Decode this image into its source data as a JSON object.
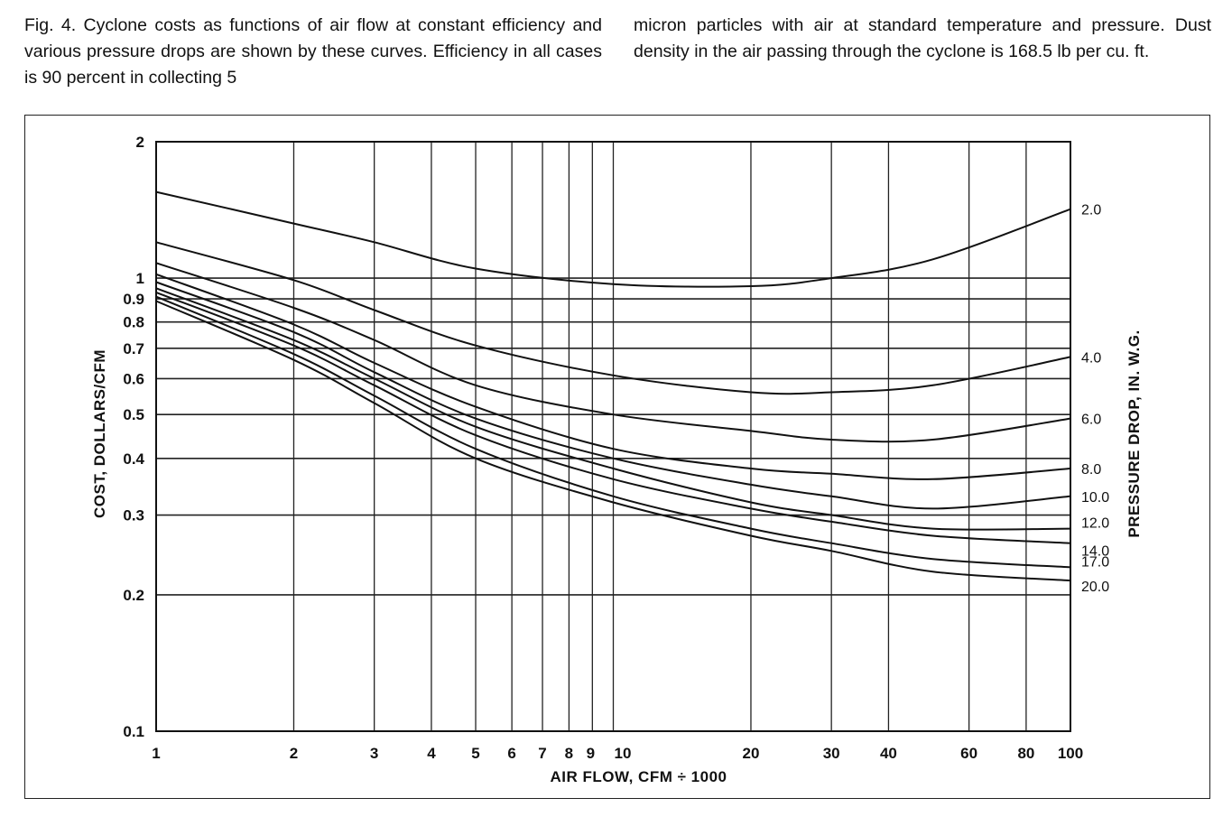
{
  "caption": {
    "left": "Fig. 4. Cyclone costs as functions of air flow at constant efficiency and various pressure drops are shown by these curves. Efficiency in all cases is 90 percent in collecting 5",
    "right": "micron particles with air at standard temperature and pressure. Dust density in the air passing through the cyclone is 168.5 lb per cu. ft."
  },
  "chart_data": {
    "type": "line",
    "xlabel": "AIR FLOW, CFM ÷ 1000",
    "ylabel": "COST, DOLLARS/CFM",
    "y2label": "PRESSURE DROP, IN. W.G.",
    "xscale": "log",
    "yscale": "log",
    "xlim": [
      1,
      100
    ],
    "ylim": [
      0.1,
      2
    ],
    "grid": true,
    "xticks": [
      1,
      2,
      3,
      4,
      5,
      6,
      7,
      8,
      9,
      10,
      20,
      30,
      40,
      60,
      80,
      100
    ],
    "xtick_labels": [
      "1",
      "2",
      "3",
      "4",
      "5",
      "6",
      "7",
      "8",
      "9",
      "10",
      "20",
      "30",
      "40",
      "60",
      "80",
      "100"
    ],
    "yticks": [
      0.1,
      0.2,
      0.3,
      0.4,
      0.5,
      0.6,
      0.7,
      0.8,
      0.9,
      1,
      2
    ],
    "ytick_labels": [
      "0.1",
      "0.2",
      "0.3",
      "0.4",
      "0.5",
      "0.6",
      "0.7",
      "0.8",
      "0.9",
      "1",
      "2"
    ],
    "x": [
      1,
      2,
      3,
      5,
      10,
      20,
      30,
      50,
      100
    ],
    "series": [
      {
        "name": "2.0",
        "values": [
          1.55,
          1.32,
          1.2,
          1.05,
          0.97,
          0.96,
          1.0,
          1.1,
          1.42
        ]
      },
      {
        "name": "4.0",
        "values": [
          1.2,
          0.99,
          0.85,
          0.71,
          0.61,
          0.56,
          0.56,
          0.58,
          0.67
        ]
      },
      {
        "name": "6.0",
        "values": [
          1.08,
          0.86,
          0.73,
          0.58,
          0.5,
          0.46,
          0.44,
          0.44,
          0.49
        ]
      },
      {
        "name": "8.0",
        "values": [
          1.02,
          0.79,
          0.65,
          0.52,
          0.42,
          0.38,
          0.37,
          0.36,
          0.38
        ]
      },
      {
        "name": "10.0",
        "values": [
          0.98,
          0.76,
          0.62,
          0.49,
          0.4,
          0.35,
          0.33,
          0.31,
          0.33
        ]
      },
      {
        "name": "12.0",
        "values": [
          0.95,
          0.73,
          0.6,
          0.47,
          0.38,
          0.32,
          0.3,
          0.28,
          0.28
        ]
      },
      {
        "name": "14.0",
        "values": [
          0.93,
          0.71,
          0.58,
          0.45,
          0.36,
          0.31,
          0.29,
          0.27,
          0.26
        ]
      },
      {
        "name": "17.0",
        "values": [
          0.91,
          0.68,
          0.55,
          0.42,
          0.33,
          0.28,
          0.26,
          0.24,
          0.23
        ]
      },
      {
        "name": "20.0",
        "values": [
          0.89,
          0.66,
          0.53,
          0.4,
          0.32,
          0.27,
          0.25,
          0.225,
          0.215
        ]
      }
    ]
  }
}
